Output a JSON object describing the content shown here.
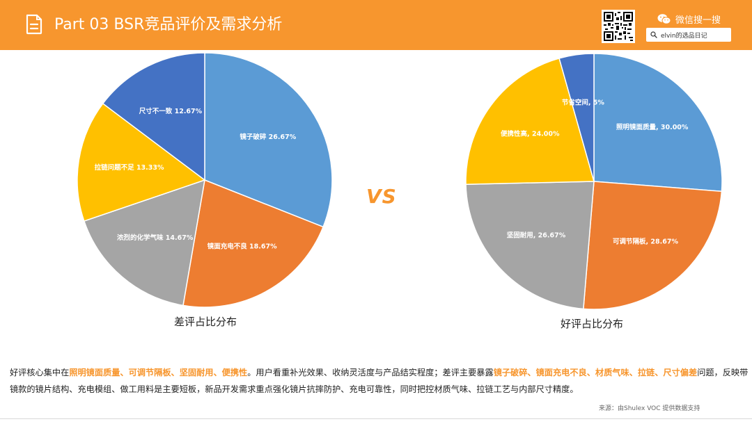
{
  "header": {
    "title": "Part 03  BSR竞品评价及需求分析",
    "wechat_label": "微信搜一搜",
    "search_text": "elvin的选品日记",
    "icons": [
      "document-icon",
      "qr-code-icon",
      "wechat-icon",
      "search-icon"
    ]
  },
  "vs_label": "VS",
  "chart_data": [
    {
      "type": "pie",
      "title": "差评占比分布",
      "slices": [
        {
          "label": "镜子破碎",
          "value": 26.67,
          "display": "26.67%",
          "color": "#5b9bd5"
        },
        {
          "label": "镜面充电不良",
          "value": 18.67,
          "display": "18.67%",
          "color": "#ed7d31"
        },
        {
          "label": "浓烈的化学气味",
          "value": 14.67,
          "display": "14.67%",
          "color": "#a5a5a5"
        },
        {
          "label": "拉链问题不足",
          "value": 13.33,
          "display": "13.33%",
          "color": "#ffc000"
        },
        {
          "label": "尺寸不一致",
          "value": 12.67,
          "display": "12.67%",
          "color": "#4472c4"
        }
      ]
    },
    {
      "type": "pie",
      "title": "好评占比分布",
      "slices": [
        {
          "label": "照明镜面质量",
          "value": 30.0,
          "display": "30.00%",
          "color": "#5b9bd5"
        },
        {
          "label": "可调节隔板",
          "value": 28.67,
          "display": "28.67%",
          "color": "#ed7d31"
        },
        {
          "label": "坚固耐用",
          "value": 26.67,
          "display": "26.67%",
          "color": "#a5a5a5"
        },
        {
          "label": "便携性高",
          "value": 24.0,
          "display": "24.00%",
          "color": "#ffc000"
        },
        {
          "label": "节省空间",
          "value": 5,
          "display": "5%",
          "color": "#4472c4"
        }
      ]
    }
  ],
  "summary": {
    "p1": "好评核心集中在",
    "h1": "照明镜面质量、可调节隔板、坚固耐用、便携性",
    "p2": "。用户看重补光效果、收纳灵活度与产品结实程度；差评主要暴露",
    "h2": "镜子破碎、镜面充电不良、材质气味、拉链、尺寸偏差",
    "p3": "问题，反映带镜款的镜片结构、充电模组、做工用料是主要短板，新品开发需求重点强化镜片抗摔防护、充电可靠性，同时把控材质气味、拉链工艺与内部尺寸精度。"
  },
  "source": "来源：由Shulex VOC 提供数据支持"
}
